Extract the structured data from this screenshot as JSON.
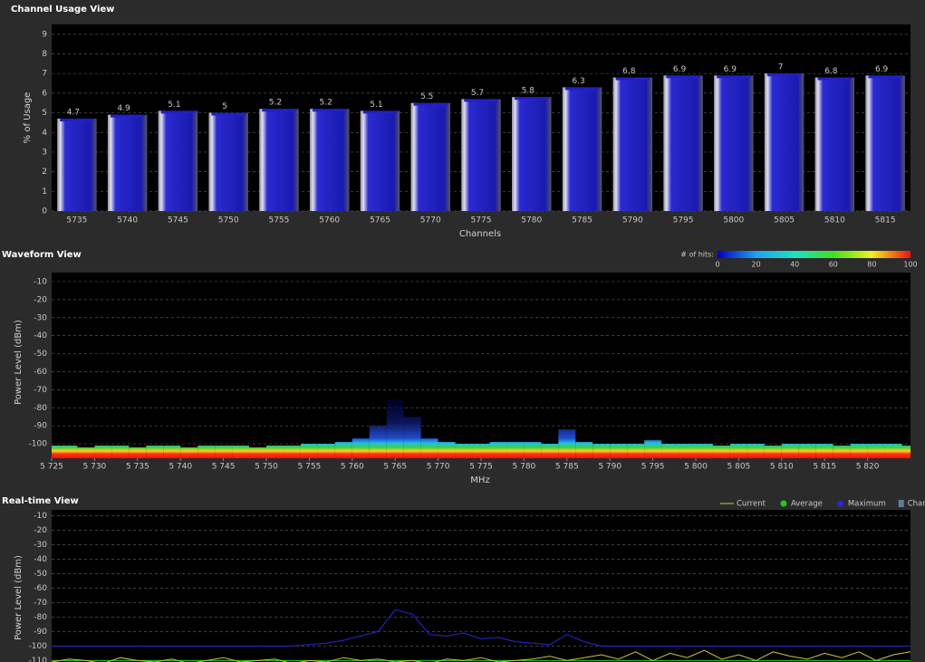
{
  "chart_data": [
    {
      "type": "bar",
      "title": "Channel Usage View",
      "y_label": "% of Usage",
      "x_label": "Channels",
      "categories": [
        "5735",
        "5740",
        "5745",
        "5750",
        "5755",
        "5760",
        "5765",
        "5770",
        "5775",
        "5780",
        "5785",
        "5790",
        "5795",
        "5800",
        "5805",
        "5810",
        "5815"
      ],
      "values": [
        4.7,
        4.9,
        5.1,
        5,
        5.2,
        5.2,
        5.1,
        5.5,
        5.7,
        5.8,
        6.3,
        6.8,
        6.9,
        6.9,
        7,
        6.8,
        6.9
      ],
      "color": "#2020c8",
      "ylim": [
        0,
        9.5
      ],
      "yticks": [
        0,
        1,
        2,
        3,
        4,
        5,
        6,
        7,
        8,
        9
      ],
      "grid": true
    },
    {
      "type": "heatmap",
      "title": "Waveform View",
      "y_label": "Power Level (dBm)",
      "x_label": "MHz",
      "colorbar_label": "# of hits:",
      "colorbar_ticks": [
        0,
        20,
        40,
        60,
        80,
        100
      ],
      "x": [
        5725,
        5727,
        5729,
        5731,
        5733,
        5735,
        5737,
        5739,
        5741,
        5743,
        5745,
        5747,
        5749,
        5751,
        5753,
        5755,
        5757,
        5759,
        5761,
        5763,
        5765,
        5767,
        5769,
        5771,
        5773,
        5775,
        5777,
        5779,
        5781,
        5783,
        5785,
        5787,
        5789,
        5791,
        5793,
        5795,
        5797,
        5799,
        5801,
        5803,
        5805,
        5807,
        5809,
        5811,
        5813,
        5815,
        5817,
        5819,
        5821,
        5823,
        5825
      ],
      "values": [
        -101,
        -101,
        -102,
        -101,
        -101,
        -102,
        -101,
        -101,
        -102,
        -101,
        -101,
        -101,
        -102,
        -101,
        -101,
        -100,
        -100,
        -99,
        -97,
        -90,
        -75,
        -85,
        -97,
        -99,
        -100,
        -100,
        -99,
        -99,
        -99,
        -100,
        -92,
        -99,
        -100,
        -100,
        -100,
        -98,
        -100,
        -100,
        -100,
        -101,
        -100,
        -100,
        -101,
        -100,
        -100,
        -100,
        -101,
        -100,
        -100,
        -100,
        -101
      ],
      "xlim": [
        5725,
        5825
      ],
      "xticks": [
        {
          "value": 5725,
          "label": "5 725"
        },
        {
          "value": 5730,
          "label": "5 730"
        },
        {
          "value": 5735,
          "label": "5 735"
        },
        {
          "value": 5740,
          "label": "5 740"
        },
        {
          "value": 5745,
          "label": "5 745"
        },
        {
          "value": 5750,
          "label": "5 750"
        },
        {
          "value": 5755,
          "label": "5 755"
        },
        {
          "value": 5760,
          "label": "5 760"
        },
        {
          "value": 5765,
          "label": "5 765"
        },
        {
          "value": 5770,
          "label": "5 770"
        },
        {
          "value": 5775,
          "label": "5 775"
        },
        {
          "value": 5780,
          "label": "5 780"
        },
        {
          "value": 5785,
          "label": "5 785"
        },
        {
          "value": 5790,
          "label": "5 790"
        },
        {
          "value": 5795,
          "label": "5 795"
        },
        {
          "value": 5800,
          "label": "5 800"
        },
        {
          "value": 5805,
          "label": "5 805"
        },
        {
          "value": 5810,
          "label": "5 810"
        },
        {
          "value": 5815,
          "label": "5 815"
        },
        {
          "value": 5820,
          "label": "5 820"
        }
      ],
      "ylim": [
        -108,
        -5
      ],
      "yticks": [
        -10,
        -20,
        -30,
        -40,
        -50,
        -60,
        -70,
        -80,
        -90,
        -100
      ],
      "grid": true
    },
    {
      "type": "line",
      "title": "Real-time View",
      "y_label": "Power Level (dBm)",
      "x": [
        5725,
        5727,
        5729,
        5731,
        5733,
        5735,
        5737,
        5739,
        5741,
        5743,
        5745,
        5747,
        5749,
        5751,
        5753,
        5755,
        5757,
        5759,
        5761,
        5763,
        5765,
        5767,
        5769,
        5771,
        5773,
        5775,
        5777,
        5779,
        5781,
        5783,
        5785,
        5787,
        5789,
        5791,
        5793,
        5795,
        5797,
        5799,
        5801,
        5803,
        5805,
        5807,
        5809,
        5811,
        5813,
        5815,
        5817,
        5819,
        5821,
        5823,
        5825
      ],
      "series": [
        {
          "name": "Current",
          "color": "#c8c83c",
          "values": [
            -111,
            -109,
            -110,
            -112,
            -108,
            -110,
            -111,
            -109,
            -112,
            -110,
            -108,
            -111,
            -110,
            -109,
            -112,
            -110,
            -111,
            -108,
            -110,
            -109,
            -111,
            -110,
            -112,
            -109,
            -110,
            -108,
            -111,
            -110,
            -109,
            -107,
            -110,
            -108,
            -106,
            -109,
            -104,
            -110,
            -105,
            -108,
            -103,
            -109,
            -106,
            -110,
            -104,
            -107,
            -109,
            -105,
            -108,
            -104,
            -110,
            -106,
            -104
          ]
        },
        {
          "name": "Average",
          "color": "#20c820",
          "values": [
            -110,
            -110,
            -110,
            -110,
            -110,
            -110,
            -110,
            -110,
            -110,
            -110,
            -110,
            -110,
            -110,
            -110,
            -110,
            -110,
            -110,
            -110,
            -110,
            -110,
            -110,
            -110,
            -110,
            -110,
            -110,
            -110,
            -110,
            -110,
            -110,
            -110,
            -110,
            -110,
            -110,
            -110,
            -110,
            -110,
            -110,
            -110,
            -110,
            -110,
            -110,
            -110,
            -110,
            -110,
            -110,
            -110,
            -110,
            -110,
            -110,
            -110,
            -110
          ]
        },
        {
          "name": "Maximum",
          "color": "#2828d8",
          "values": [
            -100,
            -100,
            -100,
            -100,
            -100,
            -100,
            -100,
            -100,
            -100,
            -100,
            -100,
            -100,
            -100,
            -100,
            -100,
            -99,
            -98,
            -96,
            -93,
            -90,
            -75,
            -78,
            -92,
            -93,
            -91,
            -95,
            -94,
            -97,
            -98,
            -99,
            -92,
            -97,
            -100,
            -100,
            -100,
            -100,
            -100,
            -100,
            -100,
            -100,
            -100,
            -100,
            -100,
            -100,
            -100,
            -100,
            -100,
            -100,
            -100,
            -100,
            -100
          ]
        }
      ],
      "channels_legend": {
        "name": "Channels",
        "color": "#5a8090"
      },
      "xlim": [
        5725,
        5825
      ],
      "ylim": [
        -111,
        -6
      ],
      "yticks": [
        -10,
        -20,
        -30,
        -40,
        -50,
        -60,
        -70,
        -80,
        -90,
        -100,
        -110
      ],
      "grid": true
    }
  ]
}
